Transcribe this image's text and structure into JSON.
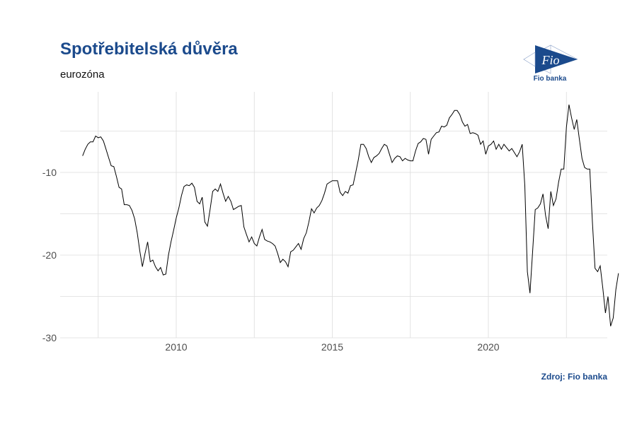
{
  "header": {
    "title": "Spotřebitelská důvěra",
    "subtitle": "eurozóna"
  },
  "logo": {
    "label": "Fio",
    "caption": "Fio banka"
  },
  "footer": {
    "source": "Zdroj: Fio banka"
  },
  "colors": {
    "brand": "#1b4a8c",
    "line": "#000000",
    "grid": "#dcdcdc"
  },
  "chart_data": {
    "type": "line",
    "title": "Spotřebitelská důvěra",
    "subtitle": "eurozóna",
    "xlabel": "",
    "ylabel": "",
    "ylim": [
      -30,
      -2
    ],
    "xlim": [
      2006.2,
      2023.7
    ],
    "y_ticks": [
      -10,
      -20,
      -30
    ],
    "y_minor_grid": [
      -5,
      -15,
      -25
    ],
    "x_ticks": [
      2010,
      2015,
      2020
    ],
    "x_minor_grid": [
      2007.5,
      2012.5,
      2017.5,
      2022.5
    ],
    "grid": true,
    "legend": "none",
    "series": [
      {
        "name": "Spotřebitelská důvěra eurozóna",
        "start": 2007.0,
        "step_months": 1,
        "values": [
          -8.0,
          -7.2,
          -6.6,
          -6.3,
          -6.3,
          -5.6,
          -5.8,
          -5.7,
          -6.2,
          -7.2,
          -8.2,
          -9.2,
          -9.3,
          -10.5,
          -11.8,
          -12.0,
          -13.9,
          -13.9,
          -14.0,
          -14.6,
          -15.6,
          -17.3,
          -19.5,
          -21.4,
          -19.8,
          -18.4,
          -20.8,
          -20.6,
          -21.4,
          -21.9,
          -21.5,
          -22.4,
          -22.3,
          -20.0,
          -18.4,
          -17.0,
          -15.5,
          -14.3,
          -12.8,
          -11.7,
          -11.5,
          -11.6,
          -11.3,
          -11.8,
          -13.5,
          -13.8,
          -13.0,
          -16.0,
          -16.5,
          -14.5,
          -12.3,
          -12.0,
          -12.3,
          -11.4,
          -12.5,
          -13.5,
          -12.9,
          -13.5,
          -14.5,
          -14.3,
          -14.1,
          -14.0,
          -16.6,
          -17.5,
          -18.4,
          -17.8,
          -18.6,
          -18.9,
          -17.8,
          -16.9,
          -18.1,
          -18.3,
          -18.4,
          -18.6,
          -18.9,
          -19.8,
          -20.9,
          -20.5,
          -20.8,
          -21.4,
          -19.6,
          -19.4,
          -19.0,
          -18.6,
          -19.3,
          -18.0,
          -17.3,
          -16.0,
          -14.4,
          -14.9,
          -14.3,
          -14.0,
          -13.4,
          -12.5,
          -11.4,
          -11.2,
          -11.0,
          -11.0,
          -11.0,
          -12.4,
          -12.8,
          -12.3,
          -12.5,
          -11.6,
          -11.5,
          -10.0,
          -8.5,
          -6.6,
          -6.6,
          -7.1,
          -8.1,
          -8.8,
          -8.2,
          -8.0,
          -7.7,
          -7.1,
          -6.6,
          -6.8,
          -7.8,
          -8.8,
          -8.3,
          -8.0,
          -8.1,
          -8.6,
          -8.3,
          -8.5,
          -8.6,
          -8.6,
          -7.4,
          -6.5,
          -6.3,
          -5.9,
          -6.0,
          -7.8,
          -6.0,
          -5.6,
          -5.2,
          -5.1,
          -4.4,
          -4.5,
          -4.3,
          -3.4,
          -3.0,
          -2.5,
          -2.5,
          -3.0,
          -3.9,
          -4.4,
          -4.2,
          -5.3,
          -5.2,
          -5.3,
          -5.5,
          -6.6,
          -6.2,
          -7.8,
          -6.8,
          -6.6,
          -6.2,
          -7.2,
          -6.6,
          -7.2,
          -6.6,
          -7.0,
          -7.4,
          -7.1,
          -7.6,
          -8.1,
          -7.5,
          -6.6,
          -11.6,
          -22.0,
          -24.6,
          -19.6,
          -14.5,
          -14.3,
          -13.8,
          -12.6,
          -15.2,
          -16.8,
          -12.3,
          -14.0,
          -13.2,
          -11.2,
          -9.6,
          -9.6,
          -4.5,
          -1.8,
          -3.4,
          -4.8,
          -3.6,
          -6.0,
          -8.3,
          -9.4,
          -9.6,
          -9.6,
          -16.0,
          -21.6,
          -22.0,
          -21.3,
          -24.0,
          -27.0,
          -25.0,
          -28.6,
          -27.6,
          -24.2,
          -22.2
        ]
      }
    ]
  }
}
